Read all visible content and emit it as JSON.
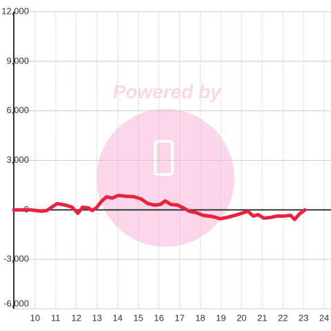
{
  "chart_data": {
    "type": "line",
    "watermark": "Powered by",
    "x": [
      8.97,
      9.8,
      10.3,
      10.57,
      10.8,
      11.07,
      11.47,
      11.8,
      12.07,
      12.3,
      12.57,
      12.77,
      12.97,
      13.23,
      13.47,
      13.73,
      14.03,
      14.37,
      14.8,
      15.13,
      15.47,
      15.8,
      16.07,
      16.3,
      16.57,
      16.9,
      17.23,
      17.47,
      17.8,
      18.13,
      18.63,
      18.97,
      19.3,
      19.8,
      20.3,
      20.57,
      20.8,
      21.07,
      21.4,
      21.73,
      22.07,
      22.37,
      22.57,
      22.8,
      23.07
    ],
    "series": [
      {
        "color": "#e8233f",
        "values": [
          0,
          0,
          -80,
          -40,
          160,
          375,
          290,
          160,
          -210,
          160,
          125,
          -40,
          125,
          540,
          790,
          710,
          875,
          830,
          790,
          665,
          375,
          290,
          330,
          540,
          330,
          290,
          85,
          -85,
          -165,
          -330,
          -415,
          -540,
          -460,
          -290,
          -85,
          -375,
          -290,
          -500,
          -460,
          -375,
          -375,
          -330,
          -580,
          -250,
          0
        ]
      }
    ],
    "xlim": [
      8.97,
      24.33
    ],
    "xticks": [
      10,
      11,
      12,
      13,
      14,
      15,
      16,
      17,
      18,
      19,
      20,
      21,
      22,
      23,
      24
    ],
    "ylim": [
      -6000,
      12000
    ],
    "yticks": [
      {
        "value": -6000,
        "label": "-6,000"
      },
      {
        "value": -3000,
        "label": "-3,000"
      },
      0,
      {
        "value": 3000,
        "label": "3,000"
      },
      {
        "value": 6000,
        "label": "6,000"
      },
      {
        "value": 9000,
        "label": "9,000"
      },
      {
        "value": 12000,
        "label": "12,000"
      }
    ],
    "grid": true
  }
}
